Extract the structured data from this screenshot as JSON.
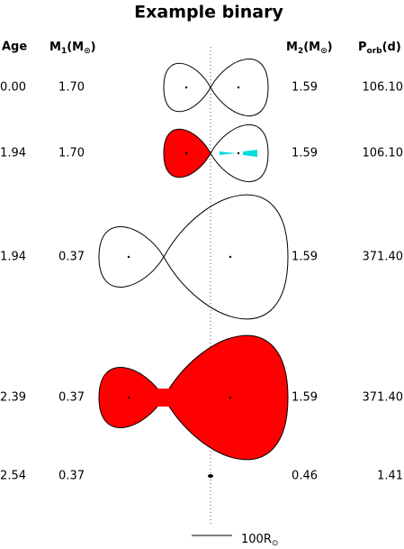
{
  "title": "Example binary",
  "headers": {
    "age": "Age",
    "m1": {
      "symbol": "M",
      "sub": "1",
      "open": "(M",
      "unit_sub": "⊙",
      "close": ")"
    },
    "m2": {
      "symbol": "M",
      "sub": "2",
      "open": "(M",
      "unit_sub": "⊙",
      "close": ")"
    },
    "porb": {
      "symbol": "P",
      "sub": "orb",
      "unit": "(d)"
    }
  },
  "rows": [
    {
      "age": "0.00",
      "m1": "1.70",
      "m2": "1.59",
      "porb": "106.10"
    },
    {
      "age": "1.94",
      "m1": "1.70",
      "m2": "1.59",
      "porb": "106.10"
    },
    {
      "age": "1.94",
      "m1": "0.37",
      "m2": "1.59",
      "porb": "371.40"
    },
    {
      "age": "2.39",
      "m1": "0.37",
      "m2": "1.59",
      "porb": "371.40"
    },
    {
      "age": "2.54",
      "m1": "0.37",
      "m2": "0.46",
      "porb": "1.41"
    }
  ],
  "scale": {
    "label": "100R",
    "sub": "⊙"
  }
}
